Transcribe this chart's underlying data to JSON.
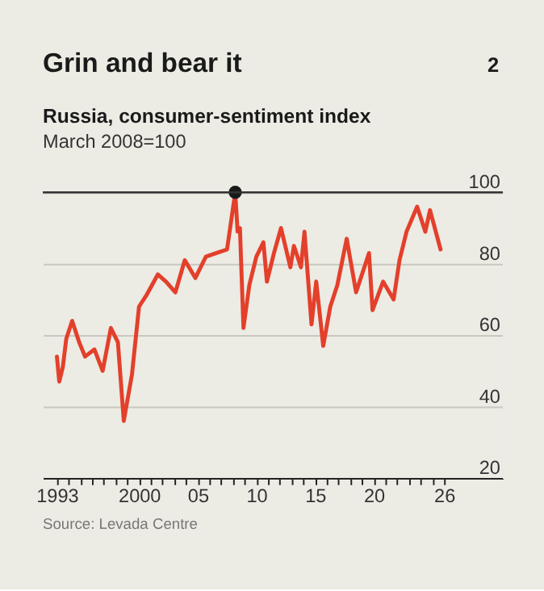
{
  "chart_data": {
    "type": "line",
    "title": "Grin and bear it",
    "subtitle": "Russia, consumer-sentiment index",
    "ylabel": "March 2008=100",
    "annotations": [
      "2",
      "Source: Levada Centre"
    ],
    "series": [
      {
        "color": "#e3402b",
        "x": [
          1993.0,
          1993.2,
          1993.5,
          1993.8,
          1994.3,
          1994.9,
          1995.4,
          1996.2,
          1996.9,
          1997.6,
          1998.2,
          1998.7,
          1999.4,
          2000.0,
          2000.6,
          2001.6,
          2002.3,
          2003.1,
          2003.9,
          2004.8,
          2005.7,
          2006.6,
          2007.5,
          2008.2,
          2008.4,
          2008.6,
          2008.9,
          2009.4,
          2010.0,
          2010.6,
          2010.9,
          2011.5,
          2012.1,
          2012.9,
          2013.2,
          2013.8,
          2014.1,
          2014.7,
          2015.1,
          2015.7,
          2016.3,
          2016.9,
          2017.7,
          2018.5,
          2019.6,
          2019.9,
          2020.8,
          2021.7,
          2022.2,
          2022.8,
          2023.7,
          2024.4,
          2024.8,
          2025.7
        ],
        "values": [
          54,
          47,
          51,
          59,
          64,
          58,
          54,
          56,
          50,
          62,
          58,
          36,
          49,
          68,
          71,
          77,
          75,
          72,
          81,
          76,
          82,
          83,
          84,
          100,
          89,
          90,
          62,
          74,
          82,
          86,
          75,
          83,
          90,
          79,
          85,
          79,
          89,
          63,
          75,
          57,
          68,
          74,
          87,
          72,
          83,
          67,
          75,
          70,
          81,
          89,
          96,
          89,
          95,
          84
        ]
      },
      {
        "type": "scatter",
        "marker": "circle",
        "color": "#1a1a1a",
        "x": [
          2008.2
        ],
        "values": [
          100
        ]
      }
    ],
    "xlim": [
      1991.8,
      2031
    ],
    "ylim": [
      20,
      100
    ],
    "xticks": [
      {
        "value": 1993,
        "label": "1993"
      },
      {
        "value": 1994,
        "label": null
      },
      {
        "value": 1995,
        "label": null
      },
      {
        "value": 1996,
        "label": null
      },
      {
        "value": 1997,
        "label": null
      },
      {
        "value": 1998,
        "label": null
      },
      {
        "value": 1999,
        "label": null
      },
      {
        "value": 2000,
        "label": "2000"
      },
      {
        "value": 2001,
        "label": null
      },
      {
        "value": 2002,
        "label": null
      },
      {
        "value": 2003,
        "label": null
      },
      {
        "value": 2004,
        "label": null
      },
      {
        "value": 2005,
        "label": "05"
      },
      {
        "value": 2006,
        "label": null
      },
      {
        "value": 2007,
        "label": null
      },
      {
        "value": 2008,
        "label": null
      },
      {
        "value": 2009,
        "label": null
      },
      {
        "value": 2010,
        "label": "10"
      },
      {
        "value": 2011,
        "label": null
      },
      {
        "value": 2012,
        "label": null
      },
      {
        "value": 2013,
        "label": null
      },
      {
        "value": 2014,
        "label": null
      },
      {
        "value": 2015,
        "label": "15"
      },
      {
        "value": 2016,
        "label": null
      },
      {
        "value": 2017,
        "label": null
      },
      {
        "value": 2018,
        "label": null
      },
      {
        "value": 2019,
        "label": null
      },
      {
        "value": 2020,
        "label": "20"
      },
      {
        "value": 2021,
        "label": null
      },
      {
        "value": 2022,
        "label": null
      },
      {
        "value": 2023,
        "label": null
      },
      {
        "value": 2024,
        "label": null
      },
      {
        "value": 2025,
        "label": null
      },
      {
        "value": 2026,
        "label": "26"
      }
    ],
    "yticks": [
      20,
      40,
      60,
      80,
      100
    ],
    "grid": "y",
    "ref_lines": [
      {
        "axis": "y",
        "value": 100,
        "color": "#333333"
      }
    ]
  }
}
